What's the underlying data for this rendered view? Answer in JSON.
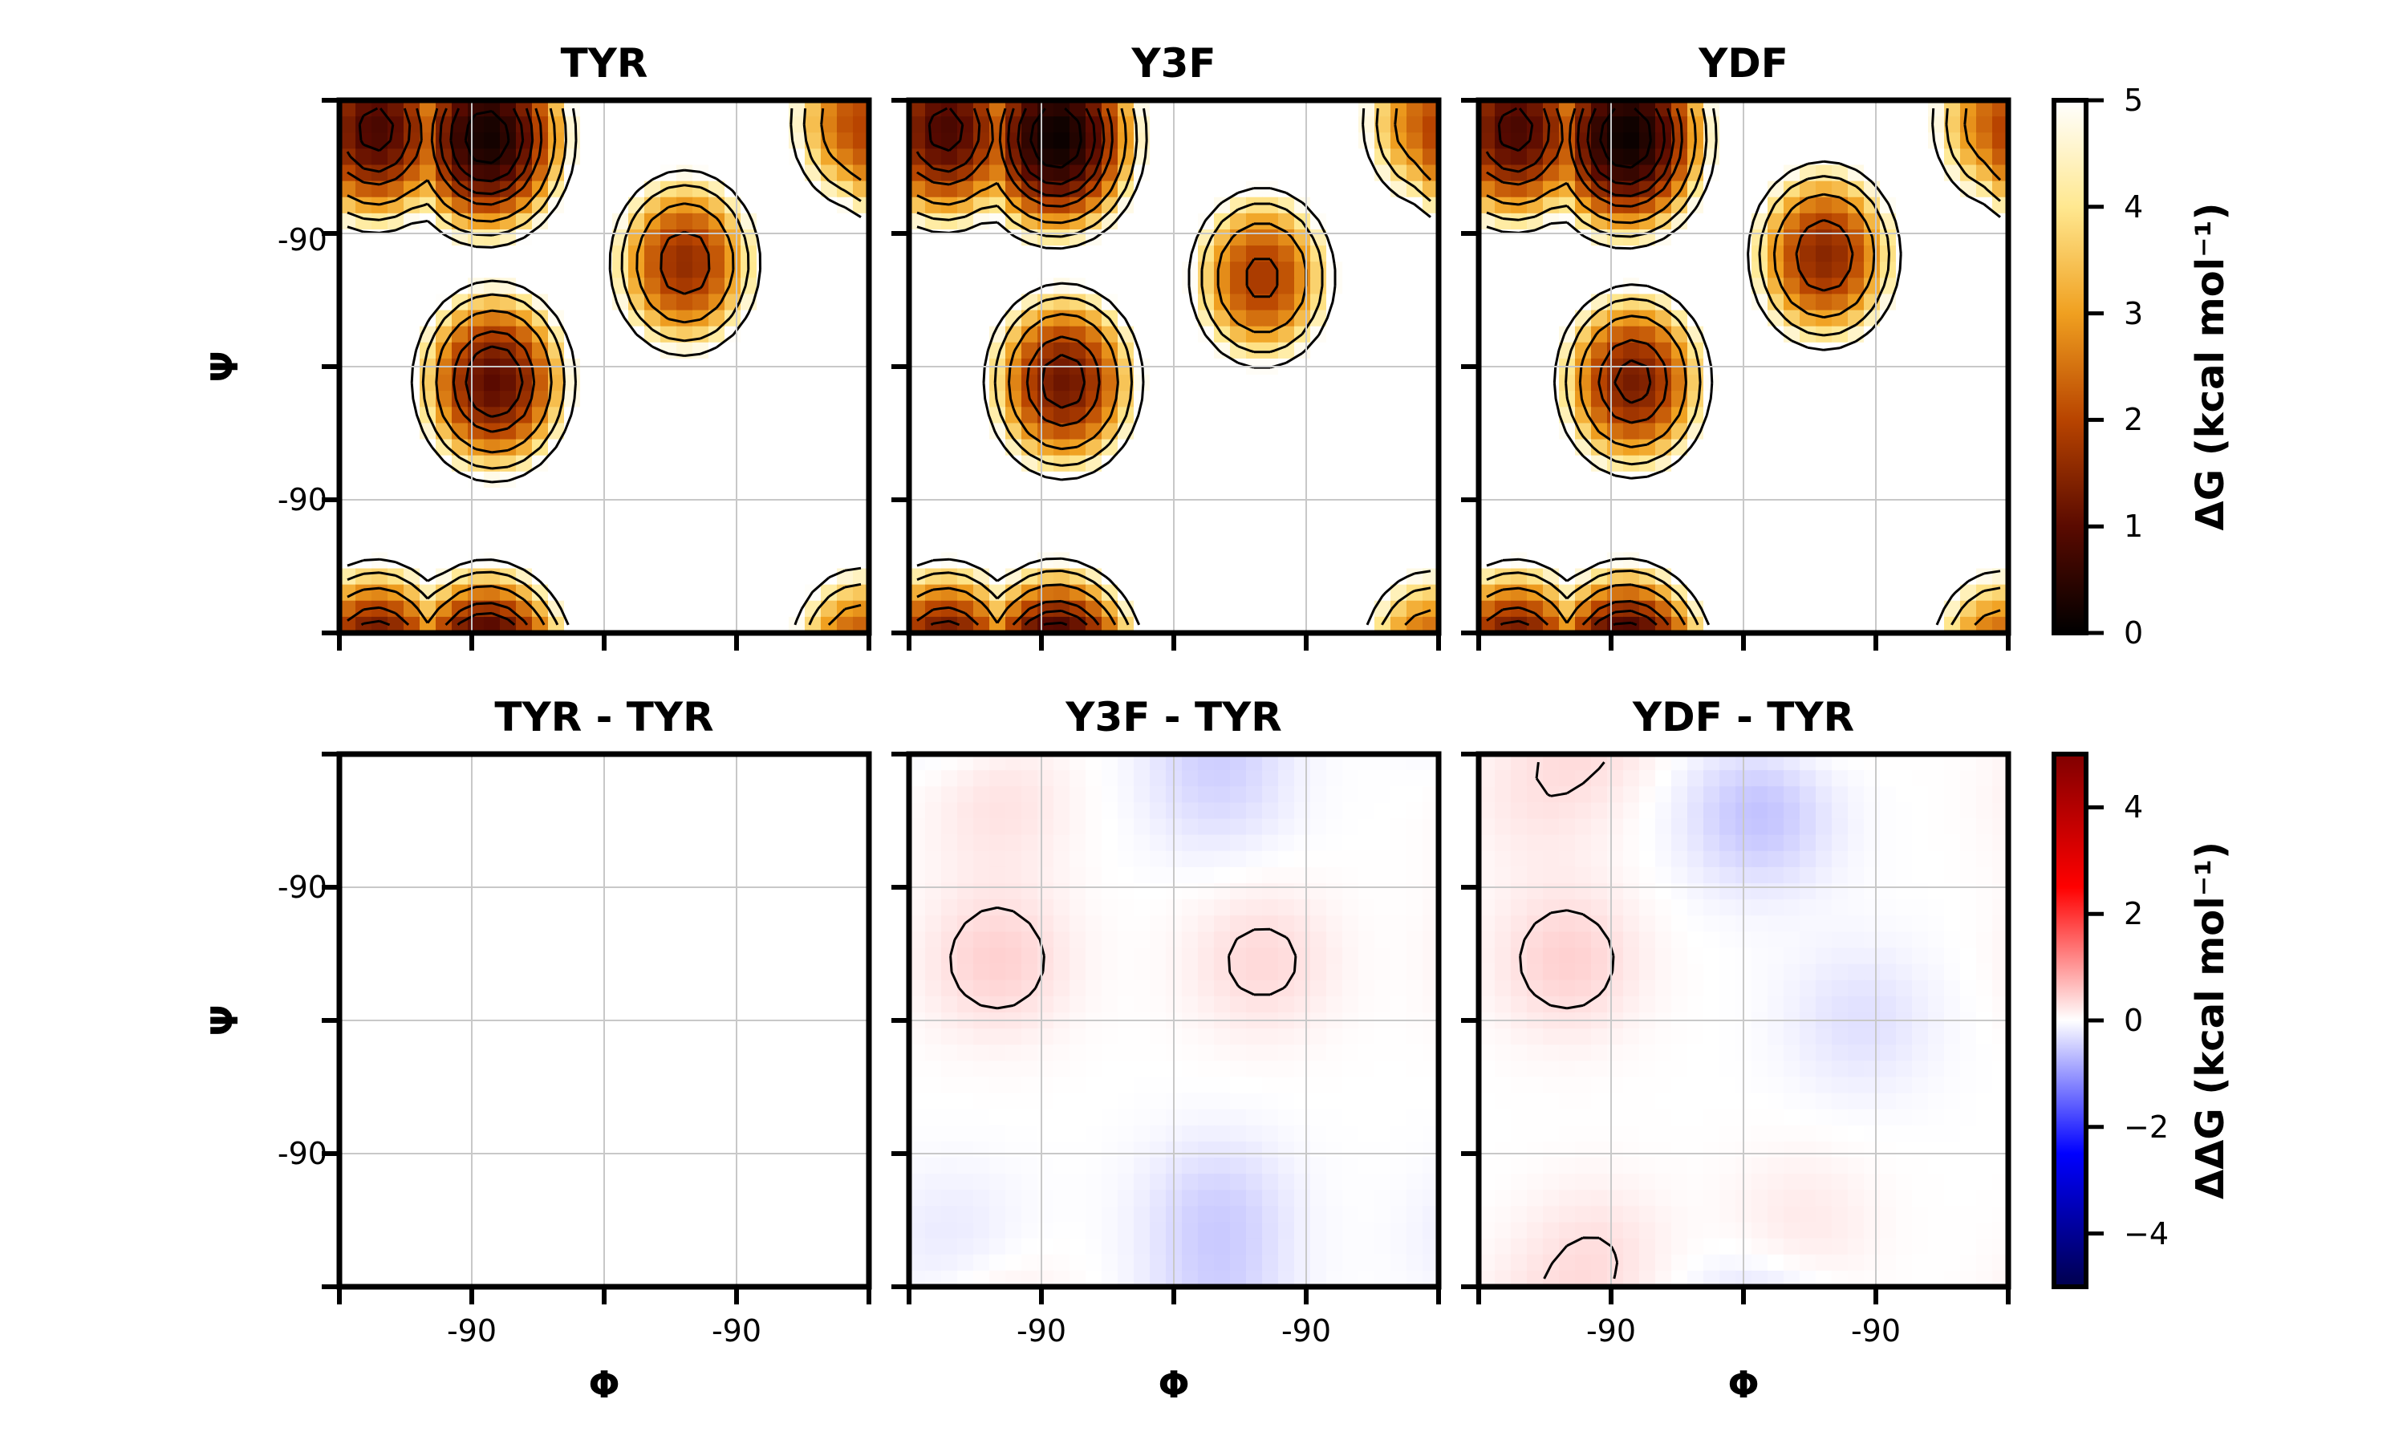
{
  "chart_data": [
    {
      "type": "heatmap",
      "title": "TYR",
      "xlabel": "",
      "ylabel": "Ψ",
      "xticks": [
        "-90",
        "-90"
      ],
      "yticks": [
        "-90",
        "-90"
      ],
      "grid": true,
      "colorbar": "free_energy",
      "peaks": [
        [
          -155,
          160,
          0.8
        ],
        [
          -80,
          155,
          0.2
        ],
        [
          -75,
          -10,
          1.0
        ],
        [
          55,
          70,
          1.6
        ],
        [
          175,
          165,
          2.0
        ]
      ],
      "contour_levels": [
        0.5,
        1,
        1.5,
        2,
        3,
        4,
        5
      ]
    },
    {
      "type": "heatmap",
      "title": "Y3F",
      "xlabel": "",
      "ylabel": "",
      "xticks": [
        "-90",
        "-90"
      ],
      "yticks": [],
      "grid": true,
      "colorbar": "free_energy",
      "peaks": [
        [
          -155,
          160,
          0.8
        ],
        [
          -80,
          155,
          0.1
        ],
        [
          -75,
          -10,
          1.2
        ],
        [
          60,
          60,
          1.8
        ],
        [
          175,
          165,
          2.2
        ]
      ],
      "contour_levels": [
        0.5,
        1,
        1.5,
        2,
        3,
        4,
        5
      ]
    },
    {
      "type": "heatmap",
      "title": "YDF",
      "xlabel": "",
      "ylabel": "",
      "xticks": [
        "-90",
        "-90"
      ],
      "yticks": [],
      "grid": true,
      "colorbar": "free_energy",
      "peaks": [
        [
          -155,
          160,
          0.8
        ],
        [
          -80,
          155,
          0.1
        ],
        [
          -75,
          -10,
          1.3
        ],
        [
          55,
          75,
          1.5
        ],
        [
          175,
          165,
          2.2
        ]
      ],
      "contour_levels": [
        0.5,
        1,
        1.5,
        2,
        3,
        4,
        5
      ]
    },
    {
      "type": "heatmap",
      "title": "TYR - TYR",
      "xlabel": "Φ",
      "ylabel": "Ψ",
      "xticks": [
        "-90",
        "-90"
      ],
      "yticks": [
        "-90",
        "-90"
      ],
      "grid": true,
      "colorbar": "difference",
      "regions": []
    },
    {
      "type": "heatmap",
      "title": "Y3F - TYR",
      "xlabel": "Φ",
      "ylabel": "",
      "xticks": [
        "-90",
        "-90"
      ],
      "yticks": [],
      "grid": true,
      "colorbar": "difference",
      "regions": [
        [
          -120,
          40,
          0.3
        ],
        [
          -120,
          150,
          0.2
        ],
        [
          60,
          40,
          0.25
        ],
        [
          30,
          160,
          -0.25
        ],
        [
          30,
          -130,
          -0.3
        ],
        [
          -150,
          -150,
          -0.15
        ]
      ]
    },
    {
      "type": "heatmap",
      "title": "YDF - TYR",
      "xlabel": "Φ",
      "ylabel": "",
      "xticks": [
        "-90",
        "-90"
      ],
      "yticks": [],
      "grid": true,
      "colorbar": "difference",
      "regions": [
        [
          -120,
          40,
          0.3
        ],
        [
          -140,
          150,
          0.15
        ],
        [
          10,
          140,
          -0.4
        ],
        [
          80,
          0,
          -0.2
        ],
        [
          -100,
          -160,
          0.2
        ],
        [
          40,
          -140,
          0.15
        ]
      ]
    }
  ],
  "colorbars": {
    "free_energy": {
      "label": "ΔG (kcal mol⁻¹)",
      "ticks": [
        "0",
        "1",
        "2",
        "3",
        "4",
        "5"
      ],
      "range": [
        0,
        5
      ],
      "colormap": "afmhot"
    },
    "difference": {
      "label": "ΔΔG (kcal mol⁻¹)",
      "ticks": [
        "−4",
        "−2",
        "0",
        "2",
        "4"
      ],
      "range": [
        -5,
        5
      ],
      "colormap": "seismic"
    }
  }
}
